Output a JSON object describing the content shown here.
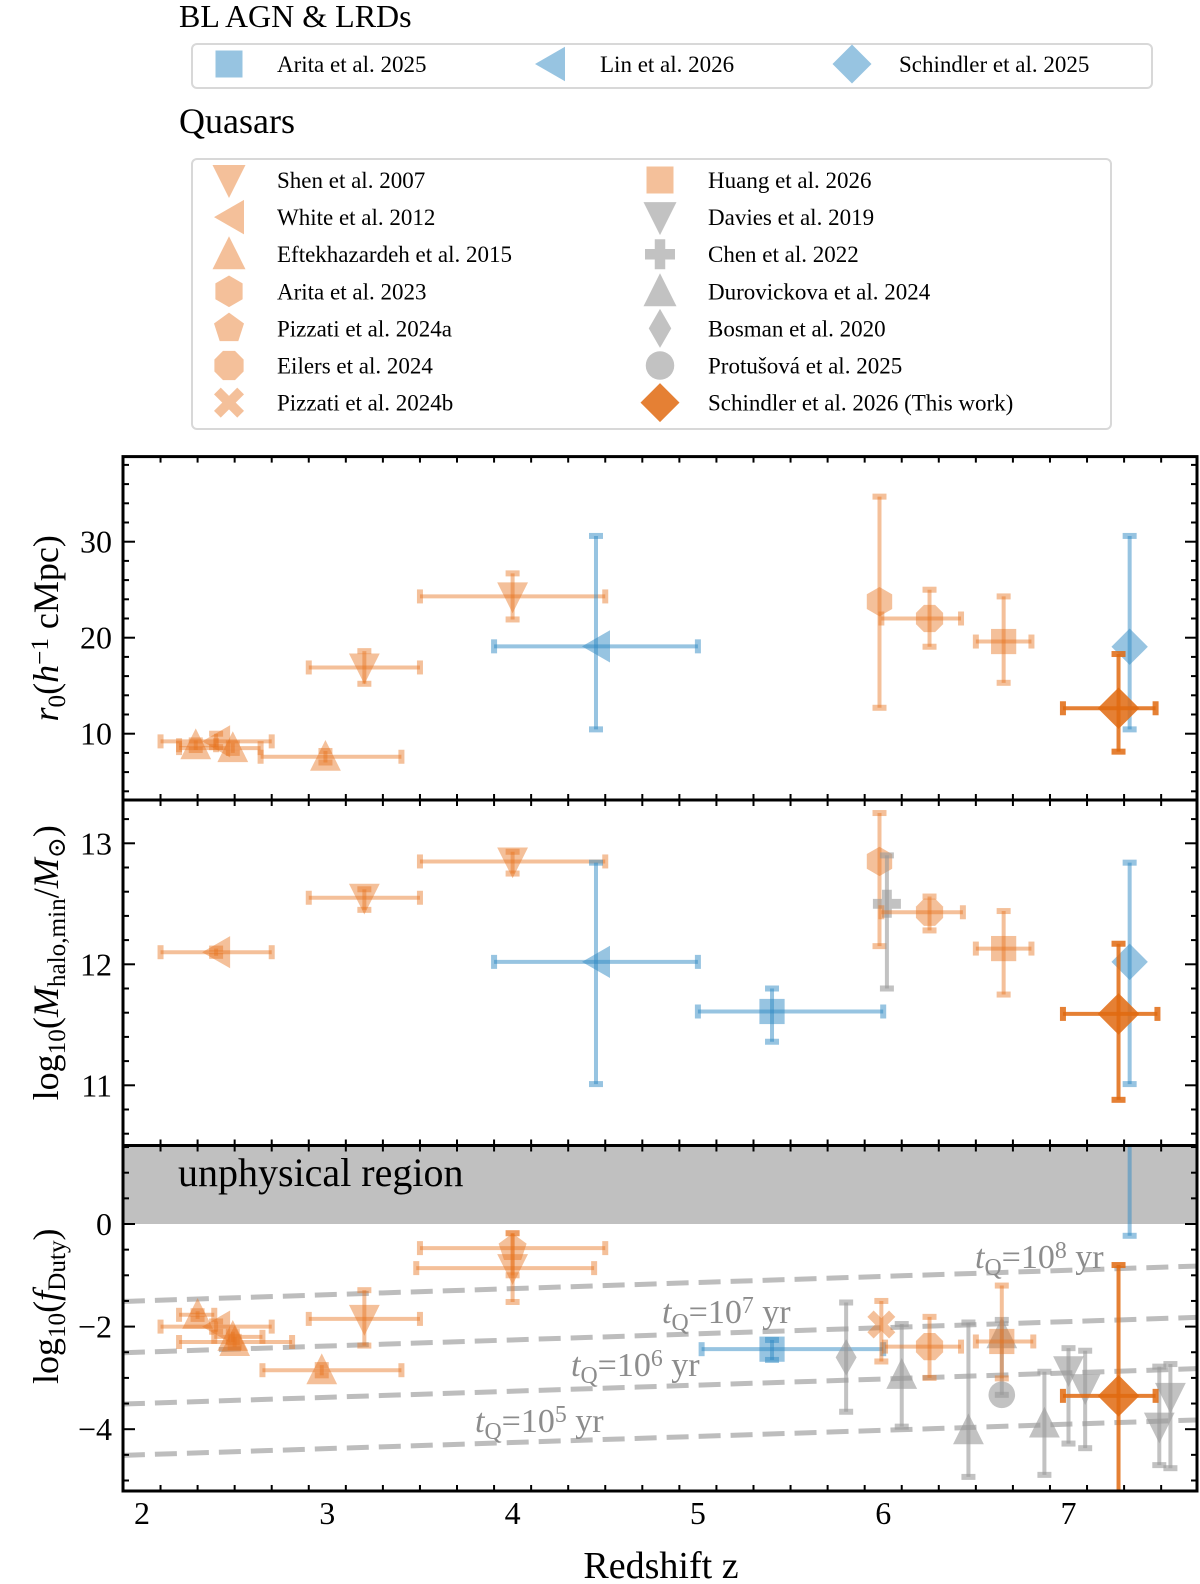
{
  "legend": {
    "groups": [
      {
        "title": "BL AGN & LRDs",
        "items": [
          {
            "id": "arita2025",
            "label": "Arita et al. 2025",
            "marker": "square",
            "color": "blue"
          },
          {
            "id": "lin2026",
            "label": "Lin et al. 2026",
            "marker": "tri-left",
            "color": "blue"
          },
          {
            "id": "schindler2025",
            "label": "Schindler et al. 2025",
            "marker": "diamond",
            "color": "blue"
          }
        ]
      },
      {
        "title": "Quasars",
        "items": [
          {
            "id": "shen2007",
            "label": "Shen et al. 2007",
            "marker": "tri-down",
            "color": "orange"
          },
          {
            "id": "white2012",
            "label": "White et al. 2012",
            "marker": "tri-left",
            "color": "orange"
          },
          {
            "id": "eftek2015",
            "label": "Eftekhazardeh et al. 2015",
            "marker": "tri-up",
            "color": "orange"
          },
          {
            "id": "arita2023",
            "label": "Arita et al. 2023",
            "marker": "hexagon",
            "color": "orange"
          },
          {
            "id": "pizzati2024a",
            "label": "Pizzati et al. 2024a",
            "marker": "pentagon",
            "color": "orange"
          },
          {
            "id": "eilers2024",
            "label": "Eilers et al. 2024",
            "marker": "octagon",
            "color": "orange"
          },
          {
            "id": "pizzati2024b",
            "label": "Pizzati et al. 2024b",
            "marker": "x",
            "color": "orange"
          },
          {
            "id": "huang2026",
            "label": "Huang et al. 2026",
            "marker": "square",
            "color": "orange"
          },
          {
            "id": "davies2019",
            "label": "Davies et al. 2019",
            "marker": "tri-down",
            "color": "gray"
          },
          {
            "id": "chen2022",
            "label": "Chen et al. 2022",
            "marker": "plus",
            "color": "gray"
          },
          {
            "id": "durovickova2024",
            "label": "Durovickova et al. 2024",
            "marker": "tri-up",
            "color": "gray"
          },
          {
            "id": "bosman2020",
            "label": "Bosman et al. 2020",
            "marker": "thin-diamond",
            "color": "gray"
          },
          {
            "id": "protusova2025",
            "label": "Protušová et al. 2025",
            "marker": "circle",
            "color": "gray"
          },
          {
            "id": "thiswork",
            "label": "Schindler et al. 2026 (This work)",
            "marker": "diamond",
            "color": "dark-orange"
          }
        ]
      }
    ]
  },
  "colors": {
    "blue": "#2f8ac4",
    "orange": "#e6731e",
    "dark-orange": "#e06a10",
    "gray": "#9a9a9a",
    "unphysical": "#c0c0c0",
    "tq_line": "#bdbdbd",
    "tq_text": "#8c8c8c"
  },
  "chart_data": [
    {
      "type": "scatter",
      "ylabel": [
        {
          "t": "r",
          "s": "it"
        },
        {
          "t": "0",
          "s": "sub"
        },
        {
          "t": "("
        },
        {
          "t": "h",
          "s": "it"
        },
        {
          "t": "−1",
          "s": "sup"
        },
        {
          "t": " cMpc)"
        }
      ],
      "xlim": [
        1.897,
        7.69
      ],
      "ylim": [
        3.1,
        38.86
      ],
      "yticks": [
        "10",
        "20",
        "30"
      ],
      "yminor_step": 2,
      "points": [
        {
          "study": "eftek2015",
          "z": 2.29,
          "zlo": 2.2,
          "zhi": 2.4,
          "y": 8.8,
          "ylo": 8.3,
          "yhi": 9.3
        },
        {
          "study": "eftek2015",
          "z": 2.49,
          "zlo": 2.2,
          "zhi": 2.64,
          "y": 8.5,
          "ylo": 8.0,
          "yhi": 9.0
        },
        {
          "study": "eftek2015",
          "z": 2.99,
          "zlo": 2.64,
          "zhi": 3.4,
          "y": 7.6,
          "ylo": 7.0,
          "yhi": 8.2
        },
        {
          "study": "white2012",
          "z": 2.4,
          "zlo": 2.1,
          "zhi": 2.7,
          "y": 9.2,
          "ylo": 8.6,
          "yhi": 10.0
        },
        {
          "study": "shen2007",
          "z": 3.2,
          "zlo": 2.9,
          "zhi": 3.5,
          "y": 16.9,
          "ylo": 15.2,
          "yhi": 18.6
        },
        {
          "study": "shen2007",
          "z": 4.0,
          "zlo": 3.5,
          "zhi": 4.5,
          "y": 24.3,
          "ylo": 21.9,
          "yhi": 26.7
        },
        {
          "study": "lin2026",
          "z": 4.45,
          "zlo": 3.9,
          "zhi": 5.0,
          "y": 19.1,
          "ylo": 10.45,
          "yhi": 30.6
        },
        {
          "study": "arita2023",
          "z": 5.98,
          "y": 23.75,
          "ylo": 12.7,
          "yhi": 34.7
        },
        {
          "study": "eilers2024",
          "z": 6.25,
          "zlo": 5.99,
          "zhi": 6.42,
          "y": 22.0,
          "ylo": 19.06,
          "yhi": 25.0
        },
        {
          "study": "huang2026",
          "z": 6.65,
          "zlo": 6.5,
          "zhi": 6.8,
          "y": 19.6,
          "ylo": 15.3,
          "yhi": 24.3
        },
        {
          "study": "schindler2025",
          "z": 7.33,
          "y": 19.06,
          "ylo": 10.45,
          "yhi": 30.6
        },
        {
          "study": "thiswork",
          "z": 7.27,
          "zlo": 6.97,
          "zhi": 7.47,
          "y": 12.65,
          "ylo": 8.13,
          "yhi": 18.3
        }
      ]
    },
    {
      "type": "scatter",
      "ylabel": [
        {
          "t": "log"
        },
        {
          "t": "10",
          "s": "sub"
        },
        {
          "t": "("
        },
        {
          "t": "M",
          "s": "it"
        },
        {
          "t": "halo,min",
          "s": "sub"
        },
        {
          "t": "/"
        },
        {
          "t": "M",
          "s": "it"
        },
        {
          "t": "⊙",
          "s": "sub"
        },
        {
          "t": ")"
        }
      ],
      "xlim": [
        1.897,
        7.69
      ],
      "ylim": [
        10.5,
        13.36
      ],
      "yticks": [
        "11",
        "12",
        "13"
      ],
      "yminor_step": 0.2,
      "points": [
        {
          "study": "white2012",
          "z": 2.4,
          "zlo": 2.1,
          "zhi": 2.7,
          "y": 12.1,
          "ylo": 12.07,
          "yhi": 12.13
        },
        {
          "study": "shen2007",
          "z": 3.2,
          "zlo": 2.9,
          "zhi": 3.5,
          "y": 12.55,
          "ylo": 12.45,
          "yhi": 12.62
        },
        {
          "study": "shen2007",
          "z": 4.0,
          "zlo": 3.5,
          "zhi": 4.5,
          "y": 12.85,
          "ylo": 12.75,
          "yhi": 12.93
        },
        {
          "study": "lin2026",
          "z": 4.45,
          "zlo": 3.9,
          "zhi": 5.0,
          "y": 12.02,
          "ylo": 11.01,
          "yhi": 12.84
        },
        {
          "study": "arita2025",
          "z": 5.4,
          "zlo": 5.0,
          "zhi": 6.0,
          "y": 11.61,
          "ylo": 11.36,
          "yhi": 11.8
        },
        {
          "study": "arita2023",
          "z": 5.98,
          "y": 12.85,
          "ylo": 12.15,
          "yhi": 13.25
        },
        {
          "study": "chen2022",
          "z": 6.02,
          "y": 12.5,
          "ylo": 11.8,
          "yhi": 12.9
        },
        {
          "study": "eilers2024",
          "z": 6.25,
          "zlo": 5.99,
          "zhi": 6.43,
          "y": 12.43,
          "ylo": 12.28,
          "yhi": 12.56
        },
        {
          "study": "huang2026",
          "z": 6.65,
          "zlo": 6.5,
          "zhi": 6.8,
          "y": 12.13,
          "ylo": 11.75,
          "yhi": 12.44
        },
        {
          "study": "schindler2025",
          "z": 7.33,
          "y": 12.02,
          "ylo": 11.01,
          "yhi": 12.84
        },
        {
          "study": "thiswork",
          "z": 7.27,
          "zlo": 6.97,
          "zhi": 7.48,
          "y": 11.59,
          "ylo": 10.88,
          "yhi": 12.17
        }
      ]
    },
    {
      "type": "scatter",
      "ylabel": [
        {
          "t": "log"
        },
        {
          "t": "10",
          "s": "sub"
        },
        {
          "t": "("
        },
        {
          "t": "f",
          "s": "it"
        },
        {
          "t": "Duty",
          "s": "sub"
        },
        {
          "t": ")"
        }
      ],
      "xlabel": "Redshift z",
      "xticks": [
        "2",
        "3",
        "4",
        "5",
        "6",
        "7"
      ],
      "xminor_step": 0.2,
      "xlim": [
        1.897,
        7.69
      ],
      "ylim": [
        -5.2,
        1.53
      ],
      "yticks": [
        "−4",
        "−2",
        "0"
      ],
      "yminor_step": 0.5,
      "unphysical_label": "unphysical region",
      "tq_lines": [
        {
          "exp": "8",
          "z": [
            1.897,
            7.69
          ],
          "f": [
            -1.51,
            -0.82
          ]
        },
        {
          "exp": "7",
          "z": [
            1.897,
            7.69
          ],
          "f": [
            -2.51,
            -1.82
          ]
        },
        {
          "exp": "6",
          "z": [
            1.897,
            7.69
          ],
          "f": [
            -3.51,
            -2.82
          ]
        },
        {
          "exp": "5",
          "z": [
            1.897,
            7.69
          ],
          "f": [
            -4.51,
            -3.82
          ]
        }
      ],
      "tq_label": {
        "t": "t",
        "sub": "Q",
        "eq": "=10",
        "unit": " yr"
      },
      "points": [
        {
          "study": "eftek2015",
          "z": 2.3,
          "zlo": 2.2,
          "zhi": 2.39,
          "y": -1.77,
          "ylo": -1.85,
          "yhi": -1.7
        },
        {
          "study": "white2012",
          "z": 2.4,
          "zlo": 2.1,
          "zhi": 2.7,
          "y": -2.0,
          "ylo": -2.1,
          "yhi": -1.9
        },
        {
          "study": "eftek2015",
          "z": 2.49,
          "zlo": 2.39,
          "zhi": 2.65,
          "y": -2.2,
          "ylo": -2.3,
          "yhi": -2.1
        },
        {
          "study": "eftek2015",
          "z": 2.5,
          "zlo": 2.2,
          "zhi": 2.81,
          "y": -2.3,
          "ylo": -2.4,
          "yhi": -2.2
        },
        {
          "study": "eftek2015",
          "z": 2.97,
          "zlo": 2.65,
          "zhi": 3.4,
          "y": -2.85,
          "ylo": -2.95,
          "yhi": -2.75
        },
        {
          "study": "shen2007",
          "z": 3.2,
          "zlo": 2.9,
          "zhi": 3.5,
          "y": -1.85,
          "ylo": -2.37,
          "yhi": -1.29
        },
        {
          "study": "shen2007",
          "z": 4.0,
          "zlo": 3.48,
          "zhi": 4.44,
          "y": -0.86,
          "ylo": -1.52,
          "yhi": -0.18
        },
        {
          "study": "pizzati2024a",
          "z": 4.0,
          "zlo": 3.5,
          "zhi": 4.5,
          "y": -0.47,
          "ylo": -1.0,
          "yhi": -0.18
        },
        {
          "study": "arita2025",
          "z": 5.4,
          "zlo": 5.02,
          "zhi": 6.0,
          "y": -2.44,
          "ylo": -2.65,
          "yhi": -2.26
        },
        {
          "study": "schindler2025",
          "z": 7.33,
          "y": null,
          "ylo": -0.23,
          "yhi": null
        },
        {
          "study": "bosman2020",
          "z": 5.8,
          "y": -2.6,
          "ylo": -3.66,
          "yhi": -1.53
        },
        {
          "study": "pizzati2024b",
          "z": 5.99,
          "y": -1.96,
          "ylo": -2.68,
          "yhi": -1.5
        },
        {
          "study": "durovickova2024",
          "z": 6.1,
          "y": -2.94,
          "ylo": -3.95,
          "yhi": -1.95
        },
        {
          "study": "durovickova2024",
          "z": 6.46,
          "y": -4.02,
          "ylo": -4.93,
          "yhi": -1.92
        },
        {
          "study": "durovickova2024",
          "z": 6.64,
          "y": -2.15,
          "ylo": -3.33,
          "yhi": -1.87
        },
        {
          "study": "durovickova2024",
          "z": 6.87,
          "y": -3.89,
          "ylo": -4.89,
          "yhi": -2.88
        },
        {
          "study": "eilers2024",
          "z": 6.25,
          "zlo": 6.01,
          "zhi": 6.42,
          "y": -2.39,
          "ylo": -3.0,
          "yhi": -1.81
        },
        {
          "study": "huang2026",
          "z": 6.64,
          "zlo": 6.5,
          "zhi": 6.81,
          "y": -2.29,
          "ylo": -3.01,
          "yhi": -1.2
        },
        {
          "study": "protusova2025",
          "z": 6.64,
          "y": -3.33
        },
        {
          "study": "davies2019",
          "z": 7.0,
          "y": -2.85,
          "ylo": -4.28,
          "yhi": -2.42
        },
        {
          "study": "davies2019",
          "z": 7.09,
          "y": -3.2,
          "ylo": -4.37,
          "yhi": -2.47
        },
        {
          "study": "davies2019",
          "z": 7.49,
          "y": -3.95,
          "ylo": -4.7,
          "yhi": -2.78
        },
        {
          "study": "davies2019",
          "z": 7.55,
          "y": -3.37,
          "ylo": -4.76,
          "yhi": -2.73
        },
        {
          "study": "thiswork",
          "z": 7.27,
          "zlo": 6.97,
          "zhi": 7.47,
          "y": -3.35,
          "ylo": -5.6,
          "yhi": -0.8
        }
      ]
    }
  ]
}
